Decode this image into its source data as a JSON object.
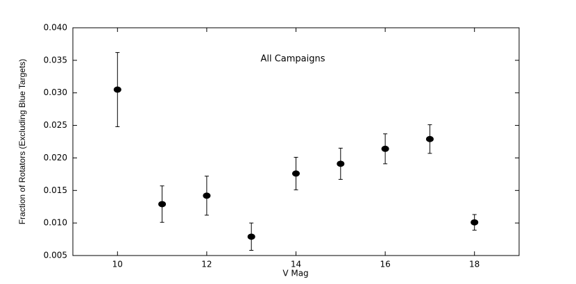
{
  "chart_data": {
    "type": "scatter",
    "xlabel": "V Mag",
    "ylabel": "Fraction of Rotators (Excluding Blue Targets)",
    "annotation": "All Campaigns",
    "x": [
      10,
      11,
      12,
      13,
      14,
      15,
      16,
      17,
      18
    ],
    "series": [
      {
        "color": "#000000",
        "values": [
          0.0305,
          0.0129,
          0.0142,
          0.0079,
          0.0176,
          0.0191,
          0.0214,
          0.0229,
          0.0101
        ],
        "errors": [
          0.0057,
          0.0028,
          0.003,
          0.0021,
          0.0025,
          0.0024,
          0.0023,
          0.0022,
          0.0012
        ]
      }
    ],
    "xlim": [
      9,
      19
    ],
    "xticks": [
      10,
      12,
      14,
      16,
      18
    ],
    "ylim": [
      0.005,
      0.04
    ],
    "yticks": [
      0.005,
      {
        "value": 0.01,
        "label": "0.010"
      },
      0.015,
      {
        "value": 0.02,
        "label": "0.020"
      },
      0.025,
      {
        "value": 0.03,
        "label": "0.030"
      },
      0.035,
      {
        "value": 0.04,
        "label": "0.040"
      }
    ],
    "grid": false
  }
}
